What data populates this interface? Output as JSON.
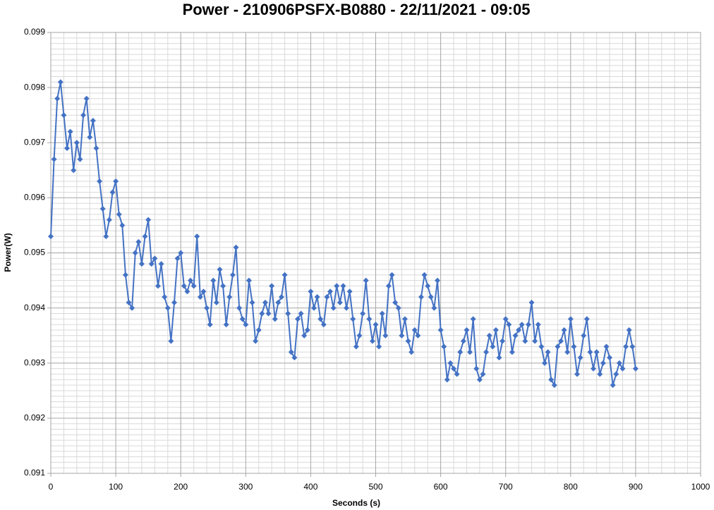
{
  "chart_data": {
    "type": "line",
    "title": "Power - 210906PSFX-B0880 - 22/11/2021 - 09:05",
    "x_label": "Seconds (s)",
    "y_label": "Power(W)",
    "color": "#4472c4",
    "grid": true,
    "xlim": [
      0,
      1000
    ],
    "xticks": [
      0,
      100,
      200,
      300,
      400,
      500,
      600,
      700,
      800,
      900,
      1000
    ],
    "ylim": [
      0.091,
      0.099
    ],
    "yticks": [
      0.091,
      0.092,
      0.093,
      0.094,
      0.095,
      0.096,
      0.097,
      0.098,
      0.099
    ],
    "x": [
      0,
      5,
      10,
      15,
      20,
      25,
      30,
      35,
      40,
      45,
      50,
      55,
      60,
      65,
      70,
      75,
      80,
      85,
      90,
      95,
      100,
      105,
      110,
      115,
      120,
      125,
      130,
      135,
      140,
      145,
      150,
      155,
      160,
      165,
      170,
      175,
      180,
      185,
      190,
      195,
      200,
      205,
      210,
      215,
      220,
      225,
      230,
      235,
      240,
      245,
      250,
      255,
      260,
      265,
      270,
      275,
      280,
      285,
      290,
      295,
      300,
      305,
      310,
      315,
      320,
      325,
      330,
      335,
      340,
      345,
      350,
      355,
      360,
      365,
      370,
      375,
      380,
      385,
      390,
      395,
      400,
      405,
      410,
      415,
      420,
      425,
      430,
      435,
      440,
      445,
      450,
      455,
      460,
      465,
      470,
      475,
      480,
      485,
      490,
      495,
      500,
      505,
      510,
      515,
      520,
      525,
      530,
      535,
      540,
      545,
      550,
      555,
      560,
      565,
      570,
      575,
      580,
      585,
      590,
      595,
      600,
      605,
      610,
      615,
      620,
      625,
      630,
      635,
      640,
      645,
      650,
      655,
      660,
      665,
      670,
      675,
      680,
      685,
      690,
      695,
      700,
      705,
      710,
      715,
      720,
      725,
      730,
      735,
      740,
      745,
      750,
      755,
      760,
      765,
      770,
      775,
      780,
      785,
      790,
      795,
      800,
      805,
      810,
      815,
      820,
      825,
      830,
      835,
      840,
      845,
      850,
      855,
      860,
      865,
      870,
      875,
      880,
      885,
      890,
      895,
      900
    ],
    "values": [
      0.0953,
      0.0967,
      0.0978,
      0.0981,
      0.0975,
      0.0969,
      0.0972,
      0.0965,
      0.097,
      0.0967,
      0.0975,
      0.0978,
      0.0971,
      0.0974,
      0.0969,
      0.0963,
      0.0958,
      0.0953,
      0.0956,
      0.0961,
      0.0963,
      0.0957,
      0.0955,
      0.0946,
      0.0941,
      0.094,
      0.095,
      0.0952,
      0.0948,
      0.0953,
      0.0956,
      0.0948,
      0.0949,
      0.0944,
      0.0948,
      0.0942,
      0.094,
      0.0934,
      0.0941,
      0.0949,
      0.095,
      0.0944,
      0.0943,
      0.0945,
      0.0944,
      0.0953,
      0.0942,
      0.0943,
      0.094,
      0.0937,
      0.0945,
      0.0941,
      0.0947,
      0.0944,
      0.0937,
      0.0942,
      0.0946,
      0.0951,
      0.094,
      0.0938,
      0.0937,
      0.0945,
      0.0941,
      0.0934,
      0.0936,
      0.0939,
      0.0941,
      0.0939,
      0.0944,
      0.0938,
      0.0941,
      0.0942,
      0.0946,
      0.0939,
      0.0932,
      0.0931,
      0.0938,
      0.0939,
      0.0935,
      0.0936,
      0.0943,
      0.094,
      0.0942,
      0.0938,
      0.0937,
      0.0942,
      0.0943,
      0.094,
      0.0944,
      0.0941,
      0.0944,
      0.094,
      0.0943,
      0.0938,
      0.0933,
      0.0935,
      0.0939,
      0.0945,
      0.0938,
      0.0934,
      0.0937,
      0.0933,
      0.0939,
      0.0935,
      0.0944,
      0.0946,
      0.0941,
      0.094,
      0.0935,
      0.0938,
      0.0934,
      0.0932,
      0.0936,
      0.0935,
      0.0942,
      0.0946,
      0.0944,
      0.0942,
      0.094,
      0.0945,
      0.0936,
      0.0933,
      0.0927,
      0.093,
      0.0929,
      0.0928,
      0.0932,
      0.0934,
      0.0936,
      0.0932,
      0.0938,
      0.0929,
      0.0927,
      0.0928,
      0.0932,
      0.0935,
      0.0933,
      0.0936,
      0.0931,
      0.0934,
      0.0938,
      0.0937,
      0.0932,
      0.0935,
      0.0936,
      0.0937,
      0.0934,
      0.0937,
      0.0941,
      0.0934,
      0.0937,
      0.0933,
      0.093,
      0.0932,
      0.0927,
      0.0926,
      0.0933,
      0.0934,
      0.0936,
      0.0932,
      0.0938,
      0.0933,
      0.0928,
      0.0931,
      0.0935,
      0.0938,
      0.0932,
      0.0929,
      0.0932,
      0.0928,
      0.093,
      0.0933,
      0.0931,
      0.0926,
      0.0928,
      0.093,
      0.0929,
      0.0933,
      0.0936,
      0.0933,
      0.0929
    ]
  }
}
